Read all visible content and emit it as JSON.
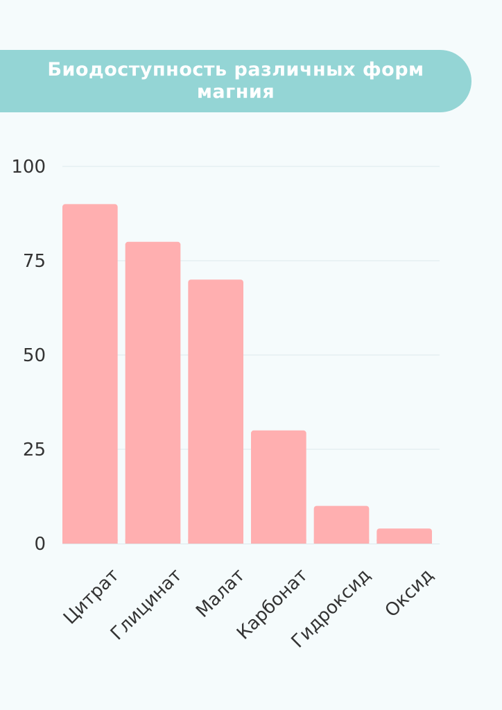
{
  "chart_data": {
    "type": "bar",
    "title": "Биодоступность различных форм магния",
    "categories": [
      "Цитрат",
      "Глицинат",
      "Малат",
      "Карбонат",
      "Гидроксид",
      "Оксид"
    ],
    "values": [
      90,
      80,
      70,
      30,
      10,
      4
    ],
    "yticks": [
      0,
      25,
      50,
      75,
      100
    ],
    "ylim": [
      0,
      100
    ],
    "xlabel": "",
    "ylabel": "",
    "grid": true,
    "bar_color": "#ffafb0",
    "grid_color": "#dde9ec",
    "title_bg_color": "#94d5d5"
  }
}
